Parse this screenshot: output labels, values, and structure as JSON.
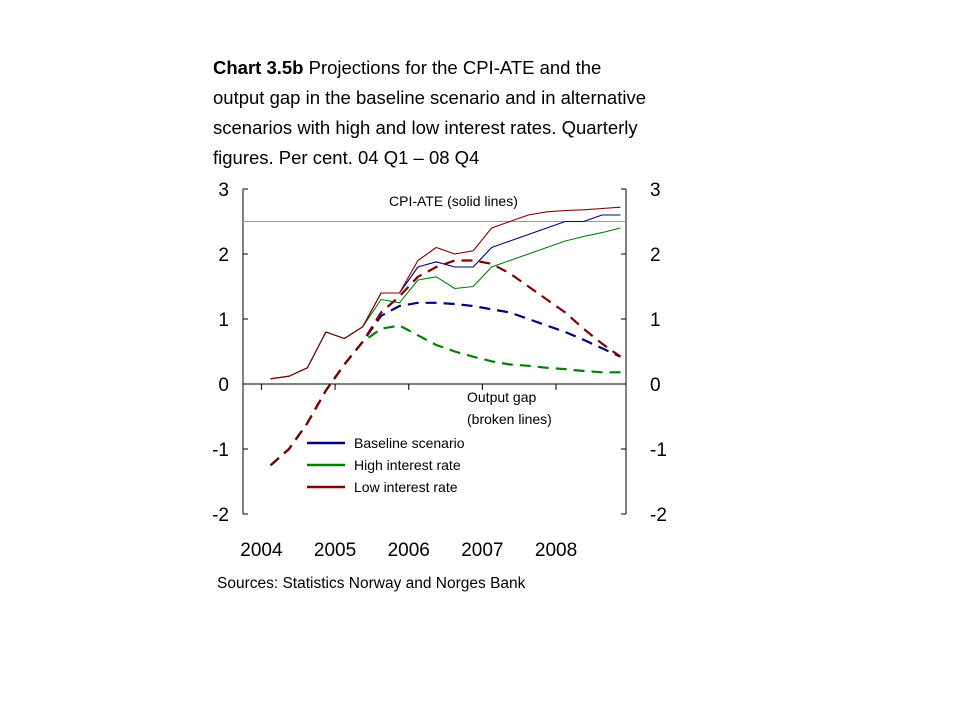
{
  "title": {
    "bold": "Chart 3.5b",
    "rest": "Projections for the CPI-ATE and the output gap in the baseline scenario and in alternative scenarios with high and low interest rates. Quarterly figures. Per cent. 04 Q1 – 08 Q4"
  },
  "source": "Sources: Statistics Norway and Norges Bank",
  "chart_data": {
    "type": "line",
    "x_start": 2004.125,
    "x_step": 0.25,
    "xlim": [
      2003.75,
      2008.95
    ],
    "ylim": [
      -2,
      3
    ],
    "x_ticks": [
      2004,
      2005,
      2006,
      2007,
      2008
    ],
    "x_tick_labels": [
      "2004",
      "2005",
      "2006",
      "2007",
      "2008"
    ],
    "y_ticks": [
      3,
      2,
      1,
      0,
      -1,
      -2
    ],
    "y_tick_labels": [
      "3",
      "2",
      "1",
      "0",
      "-1",
      "-2"
    ],
    "target_line": 2.5,
    "annotations": {
      "cpi": "CPI-ATE (solid lines)",
      "gap_line1": "Output gap",
      "gap_line2": "(broken lines)"
    },
    "legend": [
      {
        "label": "Baseline scenario",
        "color": "#000080"
      },
      {
        "label": "High interest rate",
        "color": "#008000"
      },
      {
        "label": "Low interest rate",
        "color": "#800000"
      }
    ],
    "series": [
      {
        "name": "Baseline scenario",
        "measure": "CPI-ATE",
        "style": "solid",
        "color": "#000080",
        "values": [
          0.08,
          0.12,
          0.25,
          0.8,
          0.7,
          0.88,
          1.4,
          1.4,
          1.8,
          1.88,
          1.8,
          1.8,
          2.1,
          2.2,
          2.3,
          2.4,
          2.5,
          2.5,
          2.6,
          2.6
        ]
      },
      {
        "name": "High interest rate",
        "measure": "CPI-ATE",
        "style": "solid",
        "color": "#008000",
        "values": [
          0.08,
          0.12,
          0.25,
          0.8,
          0.7,
          0.88,
          1.3,
          1.25,
          1.6,
          1.65,
          1.47,
          1.5,
          1.8,
          1.9,
          2.0,
          2.1,
          2.2,
          2.27,
          2.33,
          2.4
        ]
      },
      {
        "name": "Low interest rate",
        "measure": "CPI-ATE",
        "style": "solid",
        "color": "#800000",
        "values": [
          0.08,
          0.12,
          0.25,
          0.8,
          0.7,
          0.88,
          1.4,
          1.4,
          1.9,
          2.1,
          2.0,
          2.05,
          2.4,
          2.5,
          2.6,
          2.65,
          2.67,
          2.68,
          2.7,
          2.72
        ]
      },
      {
        "name": "Baseline scenario",
        "measure": "Output gap",
        "style": "dashed",
        "color": "#000080",
        "values": [
          -1.25,
          -1.0,
          -0.6,
          -0.1,
          0.3,
          0.65,
          1.05,
          1.2,
          1.25,
          1.25,
          1.23,
          1.2,
          1.15,
          1.1,
          1.0,
          0.9,
          0.8,
          0.68,
          0.55,
          0.42
        ]
      },
      {
        "name": "High interest rate",
        "measure": "Output gap",
        "style": "dashed",
        "color": "#008000",
        "values": [
          -1.25,
          -1.0,
          -0.6,
          -0.1,
          0.3,
          0.65,
          0.85,
          0.9,
          0.75,
          0.6,
          0.5,
          0.42,
          0.35,
          0.3,
          0.28,
          0.25,
          0.23,
          0.2,
          0.18,
          0.18
        ]
      },
      {
        "name": "Low interest rate",
        "measure": "Output gap",
        "style": "dashed",
        "color": "#800000",
        "values": [
          -1.25,
          -1.0,
          -0.6,
          -0.1,
          0.3,
          0.65,
          1.1,
          1.35,
          1.65,
          1.8,
          1.9,
          1.9,
          1.85,
          1.7,
          1.5,
          1.3,
          1.1,
          0.85,
          0.62,
          0.42
        ]
      }
    ]
  }
}
